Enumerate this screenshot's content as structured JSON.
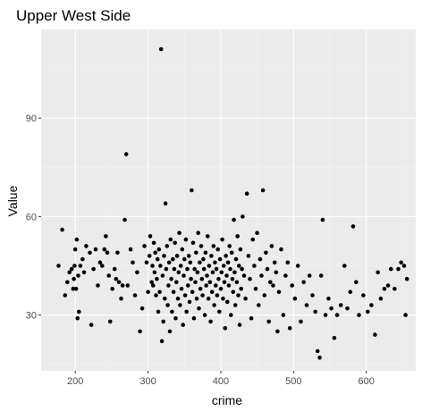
{
  "chart_data": {
    "type": "scatter",
    "title": "Upper West Side",
    "xlabel": "crime",
    "ylabel": "Value",
    "xlim": [
      153,
      668
    ],
    "ylim": [
      13,
      117
    ],
    "x_ticks": [
      200,
      300,
      400,
      500,
      600
    ],
    "y_ticks": [
      30,
      60,
      90
    ],
    "grid": true,
    "colors": {
      "panel": "#ebebeb",
      "grid_major": "#ffffff",
      "grid_minor": "#f4f4f4",
      "point": "#000000",
      "tick": "#333333"
    },
    "points": [
      [
        177,
        45
      ],
      [
        182,
        56
      ],
      [
        186,
        36
      ],
      [
        189,
        40
      ],
      [
        192,
        43
      ],
      [
        195,
        44
      ],
      [
        197,
        38
      ],
      [
        198,
        41
      ],
      [
        199,
        45
      ],
      [
        200,
        50
      ],
      [
        201,
        38
      ],
      [
        202,
        53
      ],
      [
        203,
        29
      ],
      [
        204,
        42
      ],
      [
        205,
        31
      ],
      [
        207,
        45
      ],
      [
        210,
        47
      ],
      [
        212,
        43
      ],
      [
        215,
        51
      ],
      [
        220,
        49
      ],
      [
        222,
        27
      ],
      [
        225,
        44
      ],
      [
        228,
        50
      ],
      [
        231,
        39
      ],
      [
        234,
        46
      ],
      [
        237,
        45
      ],
      [
        240,
        50
      ],
      [
        242,
        54
      ],
      [
        244,
        49
      ],
      [
        246,
        42
      ],
      [
        248,
        28
      ],
      [
        251,
        38
      ],
      [
        254,
        44
      ],
      [
        256,
        41
      ],
      [
        258,
        49
      ],
      [
        260,
        40
      ],
      [
        263,
        35
      ],
      [
        265,
        39
      ],
      [
        268,
        59
      ],
      [
        270,
        79
      ],
      [
        272,
        39
      ],
      [
        276,
        50
      ],
      [
        279,
        46
      ],
      [
        282,
        36
      ],
      [
        285,
        43
      ],
      [
        289,
        25
      ],
      [
        292,
        32
      ],
      [
        295,
        51
      ],
      [
        298,
        46
      ],
      [
        300,
        37
      ],
      [
        302,
        48
      ],
      [
        303,
        54
      ],
      [
        305,
        40
      ],
      [
        306,
        45
      ],
      [
        307,
        39
      ],
      [
        308,
        52
      ],
      [
        309,
        43
      ],
      [
        310,
        49
      ],
      [
        311,
        36
      ],
      [
        312,
        41
      ],
      [
        313,
        47
      ],
      [
        314,
        31
      ],
      [
        315,
        50
      ],
      [
        316,
        37
      ],
      [
        317,
        45
      ],
      [
        318,
        111
      ],
      [
        319,
        22
      ],
      [
        320,
        42
      ],
      [
        321,
        28
      ],
      [
        322,
        48
      ],
      [
        323,
        35
      ],
      [
        324,
        64
      ],
      [
        325,
        44
      ],
      [
        326,
        51
      ],
      [
        327,
        33
      ],
      [
        328,
        39
      ],
      [
        329,
        46
      ],
      [
        330,
        25
      ],
      [
        331,
        53
      ],
      [
        332,
        41
      ],
      [
        333,
        31
      ],
      [
        334,
        47
      ],
      [
        335,
        37
      ],
      [
        336,
        44
      ],
      [
        337,
        52
      ],
      [
        338,
        29
      ],
      [
        339,
        40
      ],
      [
        340,
        48
      ],
      [
        341,
        35
      ],
      [
        342,
        43
      ],
      [
        343,
        55
      ],
      [
        344,
        33
      ],
      [
        345,
        45
      ],
      [
        346,
        38
      ],
      [
        347,
        50
      ],
      [
        348,
        27
      ],
      [
        349,
        42
      ],
      [
        350,
        47
      ],
      [
        351,
        36
      ],
      [
        352,
        53
      ],
      [
        353,
        31
      ],
      [
        354,
        44
      ],
      [
        355,
        39
      ],
      [
        356,
        48
      ],
      [
        357,
        34
      ],
      [
        358,
        46
      ],
      [
        359,
        41
      ],
      [
        360,
        68
      ],
      [
        361,
        37
      ],
      [
        362,
        52
      ],
      [
        363,
        29
      ],
      [
        364,
        44
      ],
      [
        365,
        40
      ],
      [
        366,
        49
      ],
      [
        367,
        35
      ],
      [
        368,
        43
      ],
      [
        369,
        55
      ],
      [
        370,
        32
      ],
      [
        371,
        46
      ],
      [
        372,
        38
      ],
      [
        373,
        51
      ],
      [
        374,
        41
      ],
      [
        375,
        36
      ],
      [
        376,
        47
      ],
      [
        377,
        44
      ],
      [
        378,
        30
      ],
      [
        379,
        49
      ],
      [
        380,
        39
      ],
      [
        381,
        42
      ],
      [
        382,
        54
      ],
      [
        383,
        35
      ],
      [
        384,
        45
      ],
      [
        385,
        40
      ],
      [
        386,
        28
      ],
      [
        387,
        48
      ],
      [
        388,
        37
      ],
      [
        389,
        43
      ],
      [
        390,
        51
      ],
      [
        391,
        33
      ],
      [
        392,
        46
      ],
      [
        393,
        39
      ],
      [
        394,
        44
      ],
      [
        395,
        36
      ],
      [
        396,
        50
      ],
      [
        397,
        41
      ],
      [
        398,
        31
      ],
      [
        399,
        47
      ],
      [
        400,
        38
      ],
      [
        401,
        43
      ],
      [
        402,
        53
      ],
      [
        403,
        35
      ],
      [
        404,
        45
      ],
      [
        405,
        40
      ],
      [
        406,
        26
      ],
      [
        407,
        48
      ],
      [
        408,
        42
      ],
      [
        409,
        34
      ],
      [
        410,
        46
      ],
      [
        411,
        39
      ],
      [
        412,
        51
      ],
      [
        413,
        44
      ],
      [
        414,
        30
      ],
      [
        415,
        49
      ],
      [
        416,
        41
      ],
      [
        417,
        37
      ],
      [
        418,
        59
      ],
      [
        419,
        43
      ],
      [
        420,
        33
      ],
      [
        421,
        47
      ],
      [
        422,
        40
      ],
      [
        423,
        54
      ],
      [
        424,
        36
      ],
      [
        425,
        45
      ],
      [
        426,
        27
      ],
      [
        427,
        50
      ],
      [
        428,
        38
      ],
      [
        429,
        44
      ],
      [
        430,
        60
      ],
      [
        432,
        42
      ],
      [
        434,
        35
      ],
      [
        436,
        67
      ],
      [
        438,
        48
      ],
      [
        440,
        41
      ],
      [
        442,
        29
      ],
      [
        444,
        53
      ],
      [
        446,
        45
      ],
      [
        448,
        38
      ],
      [
        450,
        55
      ],
      [
        452,
        33
      ],
      [
        454,
        47
      ],
      [
        456,
        42
      ],
      [
        458,
        68
      ],
      [
        460,
        36
      ],
      [
        462,
        49
      ],
      [
        464,
        44
      ],
      [
        466,
        28
      ],
      [
        468,
        40
      ],
      [
        470,
        51
      ],
      [
        472,
        39
      ],
      [
        474,
        46
      ],
      [
        476,
        43
      ],
      [
        478,
        25
      ],
      [
        480,
        37
      ],
      [
        483,
        50
      ],
      [
        486,
        30
      ],
      [
        489,
        42
      ],
      [
        492,
        46
      ],
      [
        495,
        26
      ],
      [
        498,
        39
      ],
      [
        502,
        35
      ],
      [
        506,
        45
      ],
      [
        510,
        28
      ],
      [
        514,
        40
      ],
      [
        518,
        33
      ],
      [
        522,
        42
      ],
      [
        526,
        36
      ],
      [
        530,
        31
      ],
      [
        533,
        19
      ],
      [
        536,
        17
      ],
      [
        538,
        42
      ],
      [
        540,
        59
      ],
      [
        544,
        30
      ],
      [
        548,
        35
      ],
      [
        552,
        32
      ],
      [
        556,
        23
      ],
      [
        560,
        30
      ],
      [
        565,
        33
      ],
      [
        570,
        45
      ],
      [
        574,
        32
      ],
      [
        578,
        37
      ],
      [
        582,
        57
      ],
      [
        586,
        40
      ],
      [
        590,
        30
      ],
      [
        596,
        36
      ],
      [
        602,
        31
      ],
      [
        607,
        33
      ],
      [
        612,
        24
      ],
      [
        616,
        43
      ],
      [
        620,
        35
      ],
      [
        625,
        38
      ],
      [
        630,
        39
      ],
      [
        634,
        44
      ],
      [
        639,
        38
      ],
      [
        644,
        44
      ],
      [
        648,
        46
      ],
      [
        652,
        45
      ],
      [
        654,
        30
      ],
      [
        656,
        41
      ]
    ]
  }
}
